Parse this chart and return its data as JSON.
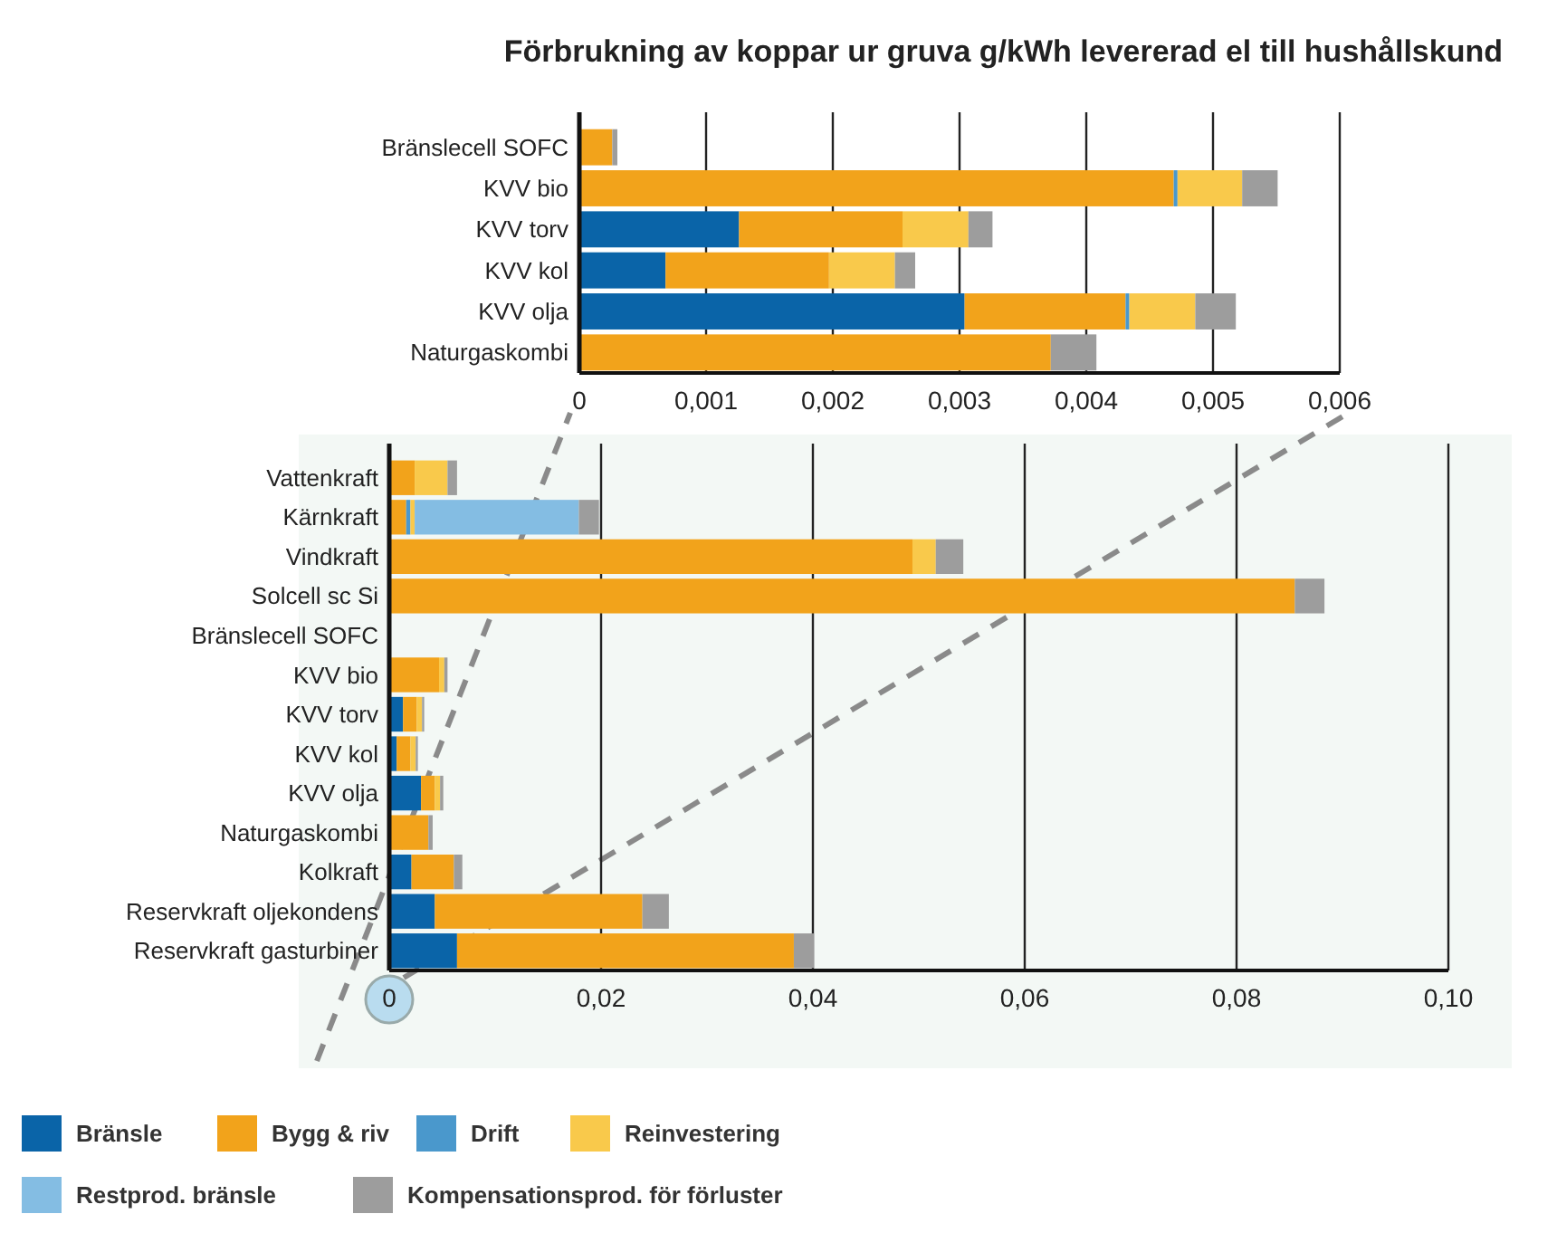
{
  "chart_data": [
    {
      "type": "bar",
      "title": "Förbrukning av koppar ur gruva g/kWh levererad el till hushållskund",
      "orientation": "horizontal",
      "stacked": true,
      "grid": "x",
      "legend": false,
      "categories": [
        "Bränslecell SOFC",
        "KVV bio",
        "KVV torv",
        "KVV kol",
        "KVV olja",
        "Naturgaskombi"
      ],
      "xlim": [
        0,
        0.006
      ],
      "xticks": [
        0,
        {
          "value": 0.001,
          "label": "0,001"
        },
        {
          "value": 0.002,
          "label": "0,002"
        },
        {
          "value": 0.003,
          "label": "0,003"
        },
        {
          "value": 0.004,
          "label": "0,004"
        },
        {
          "value": 0.005,
          "label": "0,005"
        },
        {
          "value": 0.006,
          "label": "0,006"
        }
      ],
      "series": [
        {
          "color": "#0a64a8",
          "values": [
            0,
            0,
            0.00126,
            0.00068,
            0.00304,
            0
          ]
        },
        {
          "color": "#f2a31b",
          "values": [
            0.00026,
            0.00469,
            0.00129,
            0.00129,
            0.00127,
            0.00372
          ]
        },
        {
          "color": "#4a98cc",
          "values": [
            0,
            3e-05,
            0,
            0,
            3e-05,
            0
          ]
        },
        {
          "color": "#f9c94b",
          "values": [
            0,
            0.00051,
            0.00052,
            0.00052,
            0.00052,
            0
          ]
        },
        {
          "color": "#84bde3",
          "values": [
            0,
            0,
            0,
            0,
            0,
            0
          ]
        },
        {
          "color": "#9d9d9d",
          "values": [
            4e-05,
            0.00028,
            0.00019,
            0.00016,
            0.00032,
            0.00036
          ]
        }
      ]
    },
    {
      "type": "bar",
      "orientation": "horizontal",
      "stacked": true,
      "grid": "x",
      "legend": "bottom",
      "categories": [
        "Vattenkraft",
        "Kärnkraft",
        "Vindkraft",
        "Solcell sc Si",
        "Bränslecell SOFC",
        "KVV bio",
        "KVV torv",
        "KVV kol",
        "KVV olja",
        "Naturgaskombi",
        "Kolkraft",
        "Reservkraft oljekondens",
        "Reservkraft gasturbiner"
      ],
      "xlim": [
        0,
        0.1
      ],
      "xticks": [
        0,
        {
          "value": 0.02,
          "label": "0,02"
        },
        {
          "value": 0.04,
          "label": "0,04"
        },
        {
          "value": 0.06,
          "label": "0,06"
        },
        {
          "value": 0.08,
          "label": "0,08"
        },
        {
          "value": 0.1,
          "label": "0,10"
        }
      ],
      "series": [
        {
          "name": "Bränsle",
          "color": "#0a64a8",
          "values": [
            0,
            0,
            0,
            0,
            0,
            0,
            0.0013,
            0.0007,
            0.003,
            0,
            0.0021,
            0.0043,
            0.0064
          ]
        },
        {
          "name": "Bygg & riv",
          "color": "#f2a31b",
          "values": [
            0.0024,
            0.0016,
            0.0494,
            0.0855,
            null,
            0.0047,
            0.0013,
            0.0013,
            0.0013,
            0.0037,
            0.004,
            0.0196,
            0.0318
          ]
        },
        {
          "name": "Drift",
          "color": "#4a98cc",
          "values": [
            0,
            0.0004,
            0,
            0,
            0,
            0,
            0,
            0,
            0,
            0,
            0,
            0,
            0
          ]
        },
        {
          "name": "Reinvestering",
          "color": "#f9c94b",
          "values": [
            0.0031,
            0.0004,
            0.0022,
            0,
            0,
            0.0005,
            0.0005,
            0.0005,
            0.0005,
            0,
            0,
            0,
            0
          ]
        },
        {
          "name": "Restprod. bränsle",
          "color": "#84bde3",
          "values": [
            0,
            0.0155,
            0,
            0,
            0,
            0,
            0,
            0,
            0,
            0,
            0,
            0,
            0
          ]
        },
        {
          "name": "Kompensationsprod. för förluster",
          "color": "#9d9d9d",
          "values": [
            0.0009,
            0.0019,
            0.0026,
            0.0028,
            0,
            0.0003,
            0.0002,
            0.0002,
            0.0003,
            0.0004,
            0.0008,
            0.0025,
            0.0019
          ]
        }
      ]
    }
  ]
}
